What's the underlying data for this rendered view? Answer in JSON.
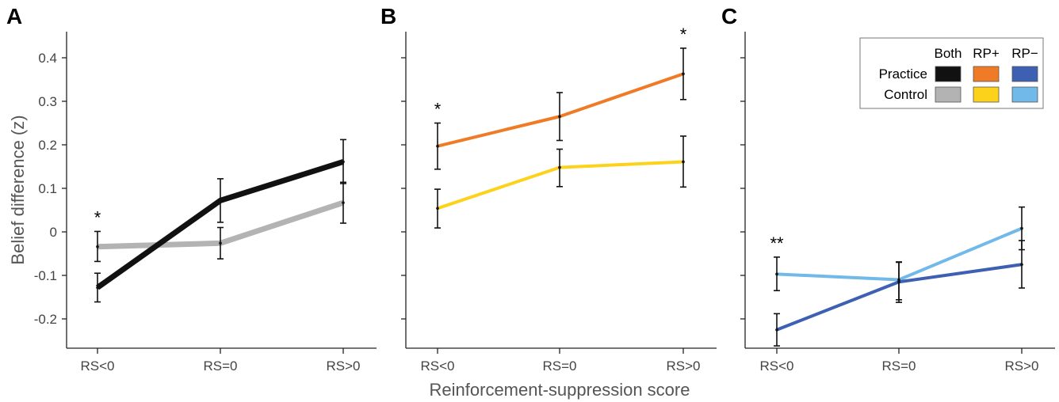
{
  "chart_data": [
    {
      "panel": "A",
      "type": "line",
      "categories": [
        "RS<0",
        "RS=0",
        "RS>0"
      ],
      "ylabel": "Belief difference (z)",
      "ylim": [
        -0.26,
        0.42
      ],
      "yticks": [
        -0.2,
        -0.1,
        0,
        0.1,
        0.2,
        0.3,
        0.4
      ],
      "ytick_labels": [
        "-0.2",
        "-0.1",
        "0",
        "0.1",
        "0.2",
        "0.3",
        "0.4"
      ],
      "series": [
        {
          "color": "#111111",
          "values": [
            -0.128,
            0.072,
            0.161
          ],
          "err_low": [
            -0.161,
            0.022,
            0.111
          ],
          "err_high": [
            -0.095,
            0.122,
            0.212
          ]
        },
        {
          "color": "#b3b3b3",
          "values": [
            -0.034,
            -0.026,
            0.067
          ],
          "err_low": [
            -0.068,
            -0.062,
            0.02
          ],
          "err_high": [
            0.001,
            0.01,
            0.114
          ]
        }
      ],
      "annotations": [
        {
          "category": "RS<0",
          "text": "*"
        }
      ]
    },
    {
      "panel": "B",
      "type": "line",
      "categories": [
        "RS<0",
        "RS=0",
        "RS>0"
      ],
      "xlabel": "Reinforcement-suppression score",
      "ylim": [
        -0.26,
        0.42
      ],
      "yticks": [
        -0.2,
        -0.1,
        0,
        0.1,
        0.2,
        0.3,
        0.4
      ],
      "series": [
        {
          "color": "#f07b26",
          "values": [
            0.197,
            0.265,
            0.363
          ],
          "err_low": [
            0.144,
            0.21,
            0.304
          ],
          "err_high": [
            0.25,
            0.32,
            0.422
          ]
        },
        {
          "color": "#fcd21b",
          "values": [
            0.054,
            0.148,
            0.161
          ],
          "err_low": [
            0.009,
            0.104,
            0.103
          ],
          "err_high": [
            0.098,
            0.19,
            0.22
          ]
        }
      ],
      "annotations": [
        {
          "category": "RS<0",
          "text": "*"
        },
        {
          "category": "RS>0",
          "text": "*"
        }
      ]
    },
    {
      "panel": "C",
      "type": "line",
      "categories": [
        "RS<0",
        "RS=0",
        "RS>0"
      ],
      "ylim": [
        -0.26,
        0.42
      ],
      "yticks": [
        -0.2,
        -0.1,
        0,
        0.1,
        0.2,
        0.3,
        0.4
      ],
      "series": [
        {
          "color": "#3d60b3",
          "values": [
            -0.225,
            -0.115,
            -0.075
          ],
          "err_low": [
            -0.262,
            -0.162,
            -0.129
          ],
          "err_high": [
            -0.188,
            -0.07,
            -0.02
          ]
        },
        {
          "color": "#70b9e8",
          "values": [
            -0.097,
            -0.11,
            0.008
          ],
          "err_low": [
            -0.135,
            -0.156,
            -0.041
          ],
          "err_high": [
            -0.058,
            -0.069,
            0.057
          ]
        }
      ],
      "annotations": [
        {
          "category": "RS<0",
          "text": "**"
        }
      ],
      "legend": {
        "placement": "top-right",
        "columns": [
          "Both",
          "RP+",
          "RP−"
        ],
        "rows": [
          {
            "label": "Practice",
            "colors": [
              "#111111",
              "#f07b26",
              "#3d60b3"
            ]
          },
          {
            "label": "Control",
            "colors": [
              "#b3b3b3",
              "#fcd21b",
              "#70b9e8"
            ]
          }
        ]
      }
    }
  ]
}
